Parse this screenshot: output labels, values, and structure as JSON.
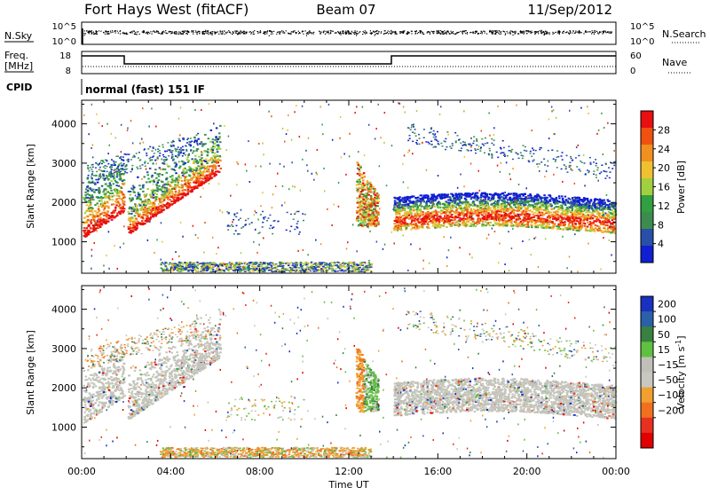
{
  "header": {
    "station": "Fort Hays West (fitACF)",
    "beam": "Beam 07",
    "date": "11/Sep/2012"
  },
  "top_panels": {
    "noise": {
      "left_label": "N.Sky",
      "right_label": "N.Search",
      "left_ticks": [
        "10^5",
        "10^0"
      ],
      "right_ticks": [
        "10^5",
        "10^0"
      ]
    },
    "freq": {
      "left_label_1": "Freq.",
      "left_label_2": "[MHz]",
      "right_label": "Nave",
      "left_ticks": [
        "18",
        "8"
      ],
      "right_ticks": [
        "60",
        "0"
      ]
    },
    "cpid": {
      "label": "CPID",
      "mode": "normal (fast) 151 IF"
    }
  },
  "colors": {
    "power_scale": [
      "#1020d0",
      "#2850a8",
      "#3c8c50",
      "#30a040",
      "#a0d040",
      "#f0c030",
      "#f09020",
      "#f05010",
      "#e81010"
    ],
    "velocity_scale": [
      "#1a30c0",
      "#2a60a8",
      "#3a8040",
      "#60c040",
      "#c0c0b8",
      "#c8c8c0",
      "#f0a030",
      "#f07020",
      "#e83020",
      "#e00000"
    ]
  },
  "chart_data": [
    {
      "type": "heatmap",
      "title": "",
      "xlabel": "Time UT",
      "ylabel": "Slant Range [km]",
      "xlim": [
        "00:00",
        "24:00"
      ],
      "x_ticks": [
        "00:00",
        "04:00",
        "08:00",
        "12:00",
        "16:00",
        "20:00",
        "00:00"
      ],
      "ylim": [
        200,
        4600
      ],
      "y_ticks": [
        1000,
        2000,
        3000,
        4000
      ],
      "colorbar_label": "Power [dB]",
      "colorbar_ticks": [
        4,
        8,
        12,
        16,
        20,
        24,
        28
      ],
      "colorbar_range": [
        0,
        32
      ],
      "features": [
        {
          "name": "morning F-region band",
          "start_h": 0.0,
          "end_h": 6.2,
          "range_start_km": 1100,
          "range_end_km": 2800
        },
        {
          "name": "near-noon plume",
          "start_h": 12.3,
          "end_h": 13.3,
          "range_start_km": 1400,
          "range_end_km": 2800
        },
        {
          "name": "afternoon band",
          "start_h": 14.0,
          "end_h": 24.0,
          "range_start_km": 1300,
          "range_end_km": 2300
        },
        {
          "name": "near-range ground scatter",
          "start_h": 3.5,
          "end_h": 13.0,
          "range_start_km": 250,
          "range_end_km": 500
        }
      ]
    },
    {
      "type": "heatmap",
      "title": "",
      "xlabel": "Time UT",
      "ylabel": "Slant Range [km]",
      "xlim": [
        "00:00",
        "24:00"
      ],
      "x_ticks": [
        "00:00",
        "04:00",
        "08:00",
        "12:00",
        "16:00",
        "20:00",
        "00:00"
      ],
      "ylim": [
        200,
        4600
      ],
      "y_ticks": [
        1000,
        2000,
        3000,
        4000
      ],
      "colorbar_label": "Velocity [m s^-1]",
      "colorbar_ticks": [
        200,
        100,
        50,
        15,
        -15,
        -50,
        -100,
        -200
      ],
      "colorbar_range": [
        -250,
        250
      ]
    }
  ]
}
